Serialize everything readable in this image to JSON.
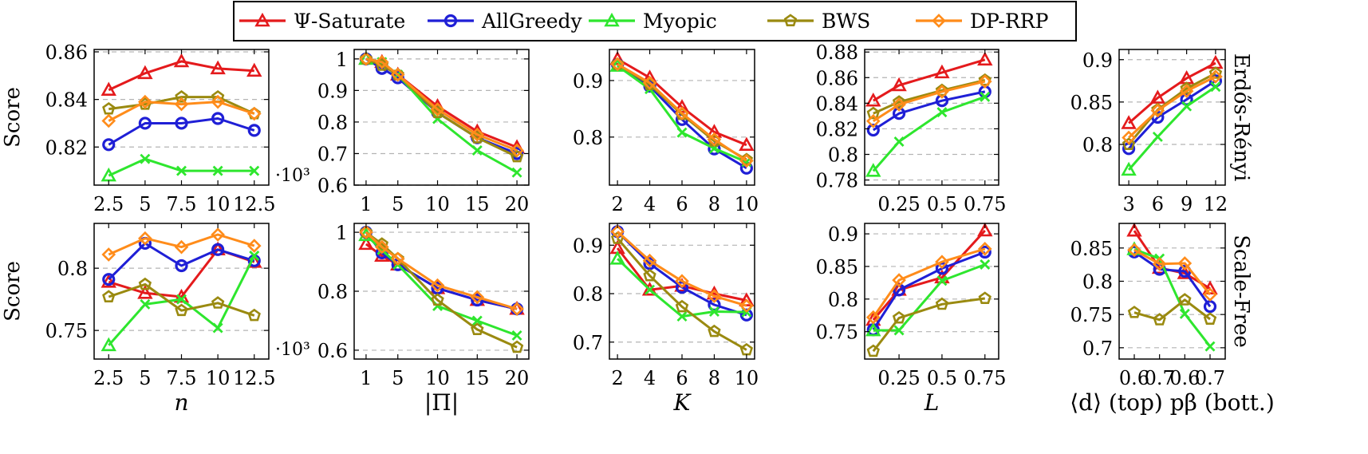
{
  "legend": {
    "position": "top-center",
    "entries": [
      {
        "label": "Ψ-Saturate",
        "color": "#e41a1c",
        "marker": "triangle"
      },
      {
        "label": "AllGreedy",
        "color": "#1f1fd6",
        "marker": "circle"
      },
      {
        "label": "Myopic",
        "color": "#2ee62e",
        "marker": "triangle"
      },
      {
        "label": "BWS",
        "color": "#9a8a10",
        "marker": "pentagon"
      },
      {
        "label": "DP-RRP",
        "color": "#ff8c1a",
        "marker": "diamond"
      }
    ]
  },
  "row_labels": [
    "Erdős-Rényi",
    "Scale-Free"
  ],
  "chart_data": [
    {
      "type": "line",
      "row": 0,
      "col": 0,
      "xlabel": "",
      "ylabel": "Score",
      "exponent": "·10³",
      "x": [
        2.5,
        5,
        7.5,
        10,
        12.5
      ],
      "xlim": [
        1.5,
        13.5
      ],
      "ylim": [
        0.804,
        0.861
      ],
      "xticks": [
        2.5,
        5,
        7.5,
        10,
        12.5
      ],
      "xtick_labels": [
        "2.5",
        "5",
        "7.5",
        "10",
        "12.5"
      ],
      "yticks": [
        0.82,
        0.84,
        0.86
      ],
      "ytick_labels": [
        "0.82",
        "0.84",
        "0.86"
      ],
      "grid": "horizontal dashed",
      "series": [
        {
          "name": "Ψ-Saturate",
          "values": [
            0.844,
            0.851,
            0.856,
            0.853,
            0.852
          ]
        },
        {
          "name": "AllGreedy",
          "values": [
            0.821,
            0.83,
            0.83,
            0.832,
            0.827
          ]
        },
        {
          "name": "Myopic",
          "values": [
            0.808,
            0.815,
            0.81,
            0.81,
            0.81
          ]
        },
        {
          "name": "BWS",
          "values": [
            0.836,
            0.838,
            0.841,
            0.841,
            0.834
          ]
        },
        {
          "name": "DP-RRP",
          "values": [
            0.831,
            0.839,
            0.838,
            0.839,
            0.834
          ]
        }
      ]
    },
    {
      "type": "line",
      "row": 0,
      "col": 1,
      "xlabel": "",
      "ylabel": "",
      "x": [
        1,
        3,
        5,
        10,
        15,
        20
      ],
      "xlim": [
        -0.5,
        21.5
      ],
      "ylim": [
        0.6,
        1.03
      ],
      "xticks": [
        1,
        5,
        10,
        15,
        20
      ],
      "xtick_labels": [
        "1",
        "5",
        "10",
        "15",
        "20"
      ],
      "yticks": [
        0.6,
        0.7,
        0.8,
        0.9,
        1.0
      ],
      "ytick_labels": [
        "0.6",
        "0.7",
        "0.8",
        "0.9",
        "1"
      ],
      "grid": "horizontal dashed",
      "series": [
        {
          "name": "Ψ-Saturate",
          "values": [
            1.0,
            0.99,
            0.95,
            0.85,
            0.77,
            0.72
          ]
        },
        {
          "name": "AllGreedy",
          "values": [
            1.0,
            0.97,
            0.94,
            0.83,
            0.75,
            0.7
          ]
        },
        {
          "name": "Myopic",
          "values": [
            1.0,
            0.99,
            0.95,
            0.81,
            0.71,
            0.64
          ]
        },
        {
          "name": "BWS",
          "values": [
            1.0,
            0.98,
            0.95,
            0.83,
            0.75,
            0.69
          ]
        },
        {
          "name": "DP-RRP",
          "values": [
            1.0,
            0.99,
            0.95,
            0.84,
            0.76,
            0.71
          ]
        }
      ]
    },
    {
      "type": "line",
      "row": 0,
      "col": 2,
      "xlabel": "",
      "ylabel": "",
      "x": [
        2,
        4,
        6,
        8,
        10
      ],
      "xlim": [
        1.5,
        10.5
      ],
      "ylim": [
        0.715,
        0.955
      ],
      "xticks": [
        2,
        4,
        6,
        8,
        10
      ],
      "xtick_labels": [
        "2",
        "4",
        "6",
        "8",
        "10"
      ],
      "yticks": [
        0.8,
        0.9
      ],
      "ytick_labels": [
        "0.8",
        "0.9"
      ],
      "grid": "horizontal dashed",
      "series": [
        {
          "name": "Ψ-Saturate",
          "values": [
            0.938,
            0.905,
            0.853,
            0.809,
            0.786
          ]
        },
        {
          "name": "AllGreedy",
          "values": [
            0.928,
            0.89,
            0.831,
            0.779,
            0.745
          ]
        },
        {
          "name": "Myopic",
          "values": [
            0.926,
            0.885,
            0.808,
            0.78,
            0.756
          ]
        },
        {
          "name": "BWS",
          "values": [
            0.929,
            0.893,
            0.84,
            0.793,
            0.76
          ]
        },
        {
          "name": "DP-RRP",
          "values": [
            0.929,
            0.896,
            0.842,
            0.796,
            0.758
          ]
        }
      ]
    },
    {
      "type": "line",
      "row": 0,
      "col": 3,
      "xlabel": "",
      "ylabel": "",
      "x": [
        0.1,
        0.25,
        0.5,
        0.75
      ],
      "xlim": [
        0.05,
        0.83
      ],
      "ylim": [
        0.776,
        0.882
      ],
      "xticks": [
        0.25,
        0.5,
        0.75
      ],
      "xtick_labels": [
        "0.25",
        "0.5",
        "0.75"
      ],
      "yticks": [
        0.78,
        0.8,
        0.82,
        0.84,
        0.86,
        0.88
      ],
      "ytick_labels": [
        "0.78",
        "0.8",
        "0.82",
        "0.84",
        "0.86",
        "0.88"
      ],
      "grid": "horizontal dashed",
      "series": [
        {
          "name": "Ψ-Saturate",
          "values": [
            0.842,
            0.854,
            0.864,
            0.874
          ]
        },
        {
          "name": "AllGreedy",
          "values": [
            0.819,
            0.832,
            0.842,
            0.849
          ]
        },
        {
          "name": "Myopic",
          "values": [
            0.787,
            0.81,
            0.833,
            0.845
          ]
        },
        {
          "name": "BWS",
          "values": [
            0.832,
            0.841,
            0.85,
            0.858
          ]
        },
        {
          "name": "DP-RRP",
          "values": [
            0.826,
            0.839,
            0.849,
            0.857
          ]
        }
      ]
    },
    {
      "type": "line",
      "row": 0,
      "col": 4,
      "xlabel": "",
      "ylabel": "",
      "row_label": "Erdős-Rényi",
      "x": [
        3,
        6,
        9,
        12
      ],
      "xlim": [
        2,
        13
      ],
      "ylim": [
        0.752,
        0.912
      ],
      "xticks": [
        3,
        6,
        9,
        12
      ],
      "xtick_labels": [
        "3",
        "6",
        "9",
        "12"
      ],
      "yticks": [
        0.8,
        0.85,
        0.9
      ],
      "ytick_labels": [
        "0.8",
        "0.85",
        "0.9"
      ],
      "grid": "horizontal dashed",
      "series": [
        {
          "name": "Ψ-Saturate",
          "values": [
            0.825,
            0.855,
            0.878,
            0.896
          ]
        },
        {
          "name": "AllGreedy",
          "values": [
            0.795,
            0.832,
            0.853,
            0.875
          ]
        },
        {
          "name": "Myopic",
          "values": [
            0.77,
            0.809,
            0.845,
            0.868
          ]
        },
        {
          "name": "BWS",
          "values": [
            0.8,
            0.841,
            0.866,
            0.884
          ]
        },
        {
          "name": "DP-RRP",
          "values": [
            0.808,
            0.84,
            0.863,
            0.88
          ]
        }
      ]
    },
    {
      "type": "line",
      "row": 1,
      "col": 0,
      "xlabel": "n",
      "ylabel": "Score",
      "exponent": "·10³",
      "x": [
        2.5,
        5,
        7.5,
        10,
        12.5
      ],
      "xlim": [
        1.5,
        13.5
      ],
      "ylim": [
        0.727,
        0.836
      ],
      "xticks": [
        2.5,
        5,
        7.5,
        10,
        12.5
      ],
      "xtick_labels": [
        "2.5",
        "5",
        "7.5",
        "10",
        "12.5"
      ],
      "yticks": [
        0.75,
        0.8
      ],
      "ytick_labels": [
        "0.75",
        "0.8"
      ],
      "grid": "horizontal dashed",
      "series": [
        {
          "name": "Ψ-Saturate",
          "values": [
            0.789,
            0.78,
            0.777,
            0.815,
            0.805
          ]
        },
        {
          "name": "AllGreedy",
          "values": [
            0.791,
            0.82,
            0.802,
            0.815,
            0.806
          ]
        },
        {
          "name": "Myopic",
          "values": [
            0.738,
            0.771,
            0.775,
            0.752,
            0.81
          ]
        },
        {
          "name": "BWS",
          "values": [
            0.777,
            0.787,
            0.766,
            0.772,
            0.762
          ]
        },
        {
          "name": "DP-RRP",
          "values": [
            0.811,
            0.824,
            0.817,
            0.827,
            0.818
          ]
        }
      ]
    },
    {
      "type": "line",
      "row": 1,
      "col": 1,
      "xlabel": "|Π|",
      "ylabel": "",
      "x": [
        1,
        3,
        5,
        10,
        15,
        20
      ],
      "xlim": [
        -0.5,
        21.5
      ],
      "ylim": [
        0.57,
        1.03
      ],
      "xticks": [
        1,
        5,
        10,
        15,
        20
      ],
      "xtick_labels": [
        "1",
        "5",
        "10",
        "15",
        "20"
      ],
      "yticks": [
        0.6,
        0.8,
        1.0
      ],
      "ytick_labels": [
        "0.6",
        "0.8",
        "1"
      ],
      "grid": "horizontal dashed",
      "series": [
        {
          "name": "Ψ-Saturate",
          "values": [
            0.96,
            0.92,
            0.89,
            0.81,
            0.77,
            0.74
          ]
        },
        {
          "name": "AllGreedy",
          "values": [
            1.0,
            0.93,
            0.89,
            0.81,
            0.77,
            0.74
          ]
        },
        {
          "name": "Myopic",
          "values": [
            0.99,
            0.94,
            0.89,
            0.75,
            0.7,
            0.65
          ]
        },
        {
          "name": "BWS",
          "values": [
            1.0,
            0.96,
            0.91,
            0.77,
            0.67,
            0.61
          ]
        },
        {
          "name": "DP-RRP",
          "values": [
            1.0,
            0.95,
            0.91,
            0.82,
            0.78,
            0.74
          ]
        }
      ]
    },
    {
      "type": "line",
      "row": 1,
      "col": 2,
      "xlabel": "K",
      "ylabel": "",
      "x": [
        2,
        4,
        6,
        8,
        10
      ],
      "xlim": [
        1.5,
        10.5
      ],
      "ylim": [
        0.665,
        0.945
      ],
      "xticks": [
        2,
        4,
        6,
        8,
        10
      ],
      "xtick_labels": [
        "2",
        "4",
        "6",
        "8",
        "10"
      ],
      "yticks": [
        0.7,
        0.8,
        0.9
      ],
      "ytick_labels": [
        "0.7",
        "0.8",
        "0.9"
      ],
      "grid": "horizontal dashed",
      "series": [
        {
          "name": "Ψ-Saturate",
          "values": [
            0.894,
            0.808,
            0.816,
            0.8,
            0.786
          ]
        },
        {
          "name": "AllGreedy",
          "values": [
            0.928,
            0.862,
            0.813,
            0.777,
            0.756
          ]
        },
        {
          "name": "Myopic",
          "values": [
            0.872,
            0.808,
            0.753,
            0.763,
            0.762
          ]
        },
        {
          "name": "BWS",
          "values": [
            0.914,
            0.837,
            0.773,
            0.722,
            0.684
          ]
        },
        {
          "name": "DP-RRP",
          "values": [
            0.928,
            0.868,
            0.826,
            0.795,
            0.775
          ]
        }
      ]
    },
    {
      "type": "line",
      "row": 1,
      "col": 3,
      "xlabel": "L",
      "ylabel": "",
      "x": [
        0.1,
        0.25,
        0.5,
        0.75
      ],
      "xlim": [
        0.05,
        0.83
      ],
      "ylim": [
        0.708,
        0.916
      ],
      "xticks": [
        0.25,
        0.5,
        0.75
      ],
      "xtick_labels": [
        "0.25",
        "0.5",
        "0.75"
      ],
      "yticks": [
        0.75,
        0.8,
        0.85,
        0.9
      ],
      "ytick_labels": [
        "0.75",
        "0.8",
        "0.85",
        "0.9"
      ],
      "grid": "horizontal dashed",
      "series": [
        {
          "name": "Ψ-Saturate",
          "values": [
            0.768,
            0.814,
            0.833,
            0.905
          ]
        },
        {
          "name": "AllGreedy",
          "values": [
            0.753,
            0.814,
            0.847,
            0.872
          ]
        },
        {
          "name": "Myopic",
          "values": [
            0.752,
            0.752,
            0.828,
            0.853
          ]
        },
        {
          "name": "BWS",
          "values": [
            0.72,
            0.771,
            0.792,
            0.801
          ]
        },
        {
          "name": "DP-RRP",
          "values": [
            0.772,
            0.829,
            0.857,
            0.877
          ]
        }
      ]
    },
    {
      "type": "line",
      "row": 1,
      "col": 4,
      "xlabel": "⟨d⟩ (top) pβ (bott.)",
      "ylabel": "",
      "row_label": "Scale-Free",
      "x": [
        1,
        2,
        3,
        4
      ],
      "xlim": [
        0.4,
        4.6
      ],
      "ylim": [
        0.683,
        0.887
      ],
      "xticks": [
        1,
        2,
        3,
        4
      ],
      "xtick_labels": [
        "0.6",
        "0.7",
        "0.6",
        "0.7"
      ],
      "yticks": [
        0.7,
        0.75,
        0.8,
        0.85
      ],
      "ytick_labels": [
        "0.7",
        "0.75",
        "0.8",
        "0.85"
      ],
      "grid": "horizontal dashed",
      "series": [
        {
          "name": "Ψ-Saturate",
          "values": [
            0.876,
            0.82,
            0.812,
            0.789
          ]
        },
        {
          "name": "AllGreedy",
          "values": [
            0.844,
            0.818,
            0.815,
            0.762
          ]
        },
        {
          "name": "Myopic",
          "values": [
            0.848,
            0.834,
            0.751,
            0.702
          ]
        },
        {
          "name": "BWS",
          "values": [
            0.753,
            0.742,
            0.772,
            0.743
          ]
        },
        {
          "name": "DP-RRP",
          "values": [
            0.847,
            0.826,
            0.827,
            0.78
          ]
        }
      ]
    }
  ]
}
